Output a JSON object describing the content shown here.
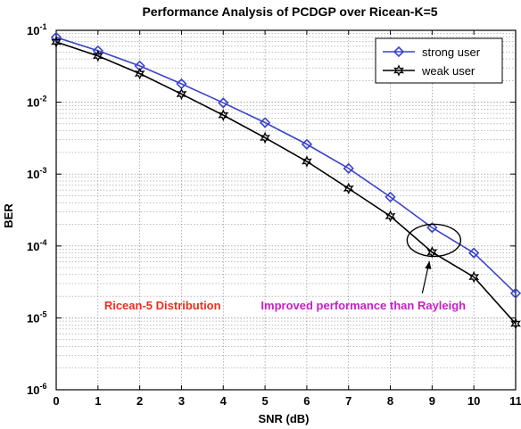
{
  "chart_data": {
    "type": "line",
    "title": "Performance Analysis of PCDGP over Ricean-K=5",
    "xlabel": "SNR (dB)",
    "ylabel": "BER",
    "x": [
      0,
      1,
      2,
      3,
      4,
      5,
      6,
      7,
      8,
      9,
      10,
      11
    ],
    "xlim": [
      0,
      11
    ],
    "ylim": [
      1e-06,
      0.1
    ],
    "yscale": "log",
    "grid": true,
    "legend_position": "top-right",
    "x_tick_labels": [
      "0",
      "1",
      "2",
      "3",
      "4",
      "5",
      "6",
      "7",
      "8",
      "9",
      "10",
      "11"
    ],
    "y_tick_labels": [
      {
        "base": "10",
        "exp": "-1"
      },
      {
        "base": "10",
        "exp": "-2"
      },
      {
        "base": "10",
        "exp": "-3"
      },
      {
        "base": "10",
        "exp": "-4"
      },
      {
        "base": "10",
        "exp": "-5"
      },
      {
        "base": "10",
        "exp": "-6"
      }
    ],
    "series": [
      {
        "name": "strong user",
        "color": "#3a44c8",
        "marker": "diamond",
        "values": [
          0.08,
          0.052,
          0.032,
          0.018,
          0.0098,
          0.0052,
          0.0026,
          0.0012,
          0.00048,
          0.00018,
          8e-05,
          2.2e-05
        ]
      },
      {
        "name": "weak user",
        "color": "#000000",
        "marker": "hexagram",
        "values": [
          0.069,
          0.044,
          0.025,
          0.013,
          0.0066,
          0.0032,
          0.0015,
          0.00063,
          0.00026,
          8.2e-05,
          3.7e-05,
          8.3e-06
        ]
      }
    ],
    "annotations": [
      {
        "text": "Ricean-5 Distribution",
        "color": "#e8301c",
        "at_x": 1.15,
        "at_y": 1.3e-05
      },
      {
        "text": "Improved performance than Rayleigh",
        "color": "#c81ec8",
        "at_x": 4.9,
        "at_y": 1.3e-05
      }
    ],
    "highlight": {
      "center_x": 9.0,
      "center_y": 0.00012,
      "arrow_to_x": 9.0,
      "arrow_to_y": 8.2e-05
    }
  }
}
